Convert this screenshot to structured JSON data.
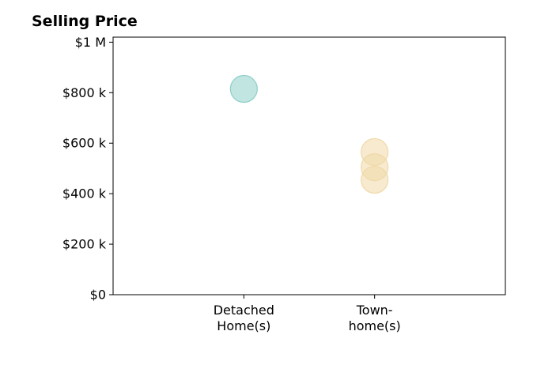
{
  "chart_data": {
    "type": "scatter",
    "title": "Selling Price",
    "xlabel": "",
    "ylabel": "",
    "categories": [
      [
        "Detached",
        "Home(s)"
      ],
      [
        "Town-",
        "home(s)"
      ]
    ],
    "y_ticks": [
      0,
      200000,
      400000,
      600000,
      800000,
      1000000
    ],
    "y_tick_labels": [
      "$0",
      "$200 k",
      "$400 k",
      "$600 k",
      "$800 k",
      "$1 M"
    ],
    "ylim": [
      0,
      1020000
    ],
    "xlim": [
      0,
      3
    ],
    "grid": false,
    "points": [
      {
        "category_index": 0,
        "value": 815000,
        "color": "#8ecfc9"
      },
      {
        "category_index": 1,
        "value": 565000,
        "color": "#f0d9a8"
      },
      {
        "category_index": 1,
        "value": 505000,
        "color": "#f0d9a8"
      },
      {
        "category_index": 1,
        "value": 455000,
        "color": "#f0d9a8"
      }
    ]
  }
}
